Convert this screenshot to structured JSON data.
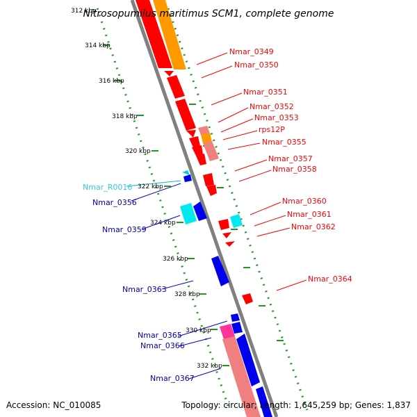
{
  "title": "Nitrosopumilus maritimus SCM1, complete genome",
  "footer": {
    "accession": "Accession: NC_010085",
    "summary": "Topology: circular; Length: 1,645,259 bp; Genes: 1,837"
  },
  "ruler": {
    "labels": [
      "312 kbp",
      "314 kbp",
      "316 kbp",
      "318 kbp",
      "320 kbp",
      "322 kbp",
      "324 kbp",
      "326 kbp",
      "328 kbp",
      "330 kbp",
      "332 kbp"
    ]
  },
  "genes": {
    "reverse_labels": [
      "Nmar_0349",
      "Nmar_0350",
      "Nmar_0351",
      "Nmar_0352",
      "Nmar_0353",
      "rps12P",
      "Nmar_0355",
      "Nmar_0357",
      "Nmar_0358",
      "Nmar_0360",
      "Nmar_0361",
      "Nmar_0362",
      "Nmar_0364"
    ],
    "forward_labels": [
      "Nmar_R0016",
      "Nmar_0356",
      "Nmar_0359",
      "Nmar_0363",
      "Nmar_0365",
      "Nmar_0366",
      "Nmar_0367"
    ]
  },
  "colors": {
    "reverse_cds": "#ff0000",
    "forward_cds": "#0000ee",
    "rna": "#00e8f0",
    "pseudogene": "#f08080",
    "orange_feature": "#ff9900",
    "pink_feature": "#ff3399",
    "backbone": "#808080",
    "ruler_dots": "#009900"
  }
}
